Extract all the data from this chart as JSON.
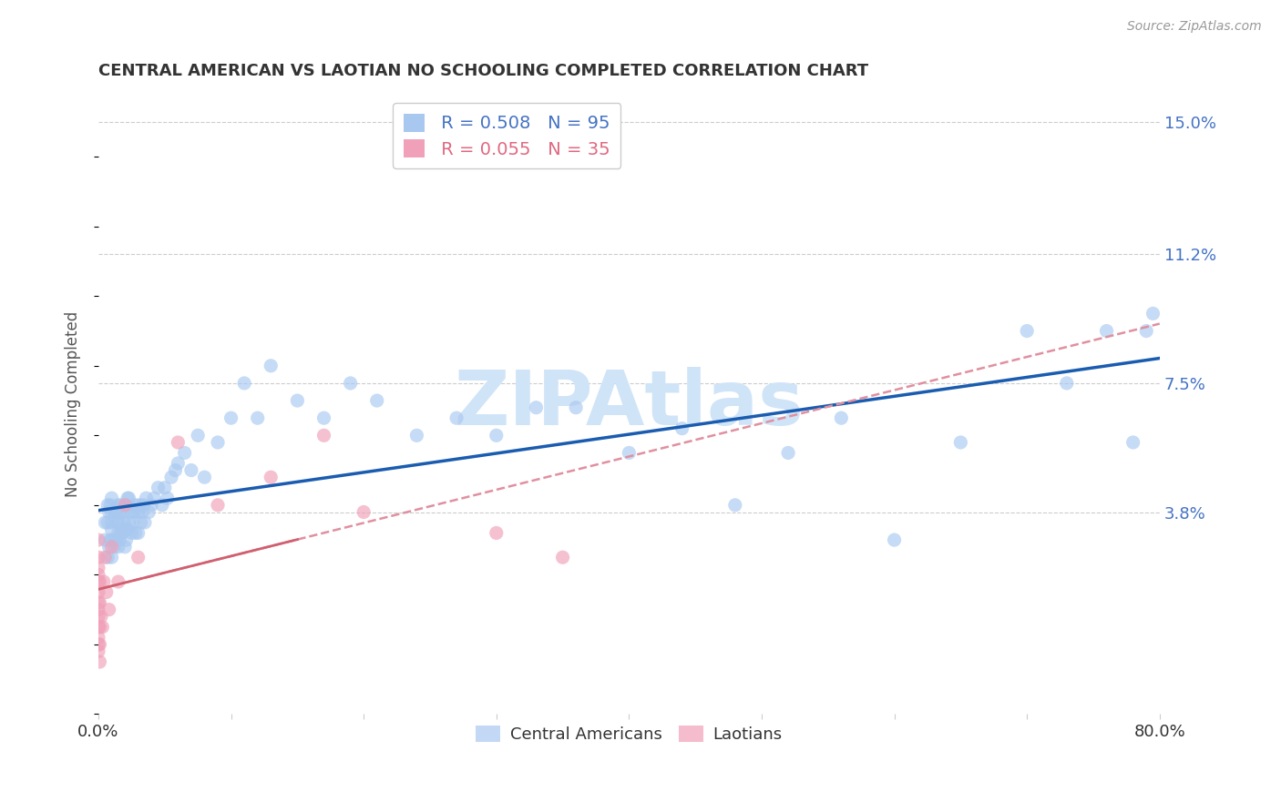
{
  "title": "CENTRAL AMERICAN VS LAOTIAN NO SCHOOLING COMPLETED CORRELATION CHART",
  "source": "Source: ZipAtlas.com",
  "ylabel": "No Schooling Completed",
  "xlim": [
    0.0,
    0.8
  ],
  "ylim": [
    -0.02,
    0.158
  ],
  "yticks": [
    0.038,
    0.075,
    0.112,
    0.15
  ],
  "ytick_labels": [
    "3.8%",
    "7.5%",
    "11.2%",
    "15.0%"
  ],
  "xticks": [
    0.0,
    0.1,
    0.2,
    0.3,
    0.4,
    0.5,
    0.6,
    0.7,
    0.8
  ],
  "blue_R": 0.508,
  "blue_N": 95,
  "pink_R": 0.055,
  "pink_N": 35,
  "blue_color": "#a8c8f0",
  "pink_color": "#f0a0b8",
  "line_blue": "#1a5cb0",
  "line_pink": "#d06070",
  "line_pink_dash": "#e090a0",
  "watermark": "ZIPAtlas",
  "watermark_color": "#d0e4f8",
  "legend_labels": [
    "Central Americans",
    "Laotians"
  ],
  "blue_points_x": [
    0.005,
    0.005,
    0.007,
    0.007,
    0.007,
    0.008,
    0.008,
    0.009,
    0.009,
    0.01,
    0.01,
    0.01,
    0.01,
    0.01,
    0.01,
    0.012,
    0.012,
    0.013,
    0.013,
    0.014,
    0.015,
    0.015,
    0.015,
    0.015,
    0.016,
    0.016,
    0.017,
    0.017,
    0.018,
    0.018,
    0.019,
    0.02,
    0.02,
    0.02,
    0.021,
    0.021,
    0.022,
    0.022,
    0.023,
    0.023,
    0.025,
    0.025,
    0.026,
    0.027,
    0.028,
    0.028,
    0.03,
    0.03,
    0.031,
    0.032,
    0.033,
    0.034,
    0.035,
    0.036,
    0.038,
    0.04,
    0.042,
    0.045,
    0.048,
    0.05,
    0.052,
    0.055,
    0.058,
    0.06,
    0.065,
    0.07,
    0.075,
    0.08,
    0.09,
    0.1,
    0.11,
    0.12,
    0.13,
    0.15,
    0.17,
    0.19,
    0.21,
    0.24,
    0.27,
    0.3,
    0.33,
    0.36,
    0.4,
    0.44,
    0.48,
    0.52,
    0.56,
    0.6,
    0.65,
    0.7,
    0.73,
    0.76,
    0.78,
    0.79,
    0.795
  ],
  "blue_points_y": [
    0.03,
    0.035,
    0.025,
    0.035,
    0.04,
    0.028,
    0.038,
    0.03,
    0.04,
    0.025,
    0.03,
    0.033,
    0.035,
    0.038,
    0.042,
    0.028,
    0.038,
    0.03,
    0.038,
    0.035,
    0.028,
    0.032,
    0.035,
    0.04,
    0.03,
    0.038,
    0.032,
    0.04,
    0.032,
    0.038,
    0.035,
    0.028,
    0.033,
    0.038,
    0.03,
    0.04,
    0.033,
    0.042,
    0.035,
    0.042,
    0.032,
    0.038,
    0.035,
    0.038,
    0.032,
    0.04,
    0.032,
    0.038,
    0.04,
    0.035,
    0.038,
    0.04,
    0.035,
    0.042,
    0.038,
    0.04,
    0.042,
    0.045,
    0.04,
    0.045,
    0.042,
    0.048,
    0.05,
    0.052,
    0.055,
    0.05,
    0.06,
    0.048,
    0.058,
    0.065,
    0.075,
    0.065,
    0.08,
    0.07,
    0.065,
    0.075,
    0.07,
    0.06,
    0.065,
    0.06,
    0.068,
    0.068,
    0.055,
    0.062,
    0.04,
    0.055,
    0.065,
    0.03,
    0.058,
    0.09,
    0.075,
    0.09,
    0.058,
    0.09,
    0.095
  ],
  "pink_points_x": [
    0.0,
    0.0,
    0.0,
    0.0,
    0.0,
    0.0,
    0.0,
    0.0,
    0.0,
    0.0,
    0.0,
    0.0,
    0.0,
    0.001,
    0.001,
    0.001,
    0.001,
    0.001,
    0.002,
    0.003,
    0.004,
    0.005,
    0.006,
    0.008,
    0.01,
    0.015,
    0.02,
    0.03,
    0.06,
    0.09,
    0.13,
    0.17,
    0.2,
    0.3,
    0.35
  ],
  "pink_points_y": [
    -0.002,
    0.0,
    0.002,
    0.005,
    0.008,
    0.01,
    0.012,
    0.015,
    0.018,
    0.02,
    0.022,
    0.025,
    0.03,
    -0.005,
    0.0,
    0.005,
    0.012,
    0.018,
    0.008,
    0.005,
    0.018,
    0.025,
    0.015,
    0.01,
    0.028,
    0.018,
    0.04,
    0.025,
    0.058,
    0.04,
    0.048,
    0.06,
    0.038,
    0.032,
    0.025
  ]
}
